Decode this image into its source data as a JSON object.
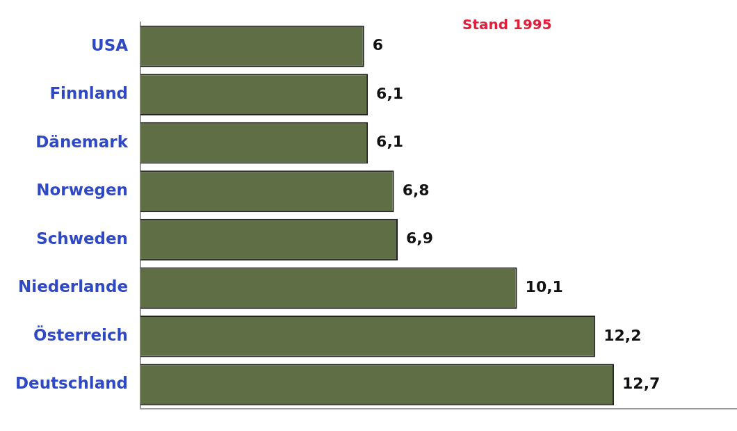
{
  "chart_data": {
    "type": "bar",
    "orientation": "horizontal",
    "categories": [
      "USA",
      "Finnland",
      "Dänemark",
      "Norwegen",
      "Schweden",
      "Niederlande",
      "Österreich",
      "Deutschland"
    ],
    "values": [
      6,
      6.1,
      6.1,
      6.8,
      6.9,
      10.1,
      12.2,
      12.7
    ],
    "value_labels": [
      "6",
      "6,1",
      "6,1",
      "6,8",
      "6,9",
      "10,1",
      "12,2",
      "12,7"
    ],
    "color": "#5f6e45",
    "xlim": [
      0,
      16
    ],
    "tick_labels": "y",
    "annotations": [
      "Stand 1995"
    ]
  }
}
